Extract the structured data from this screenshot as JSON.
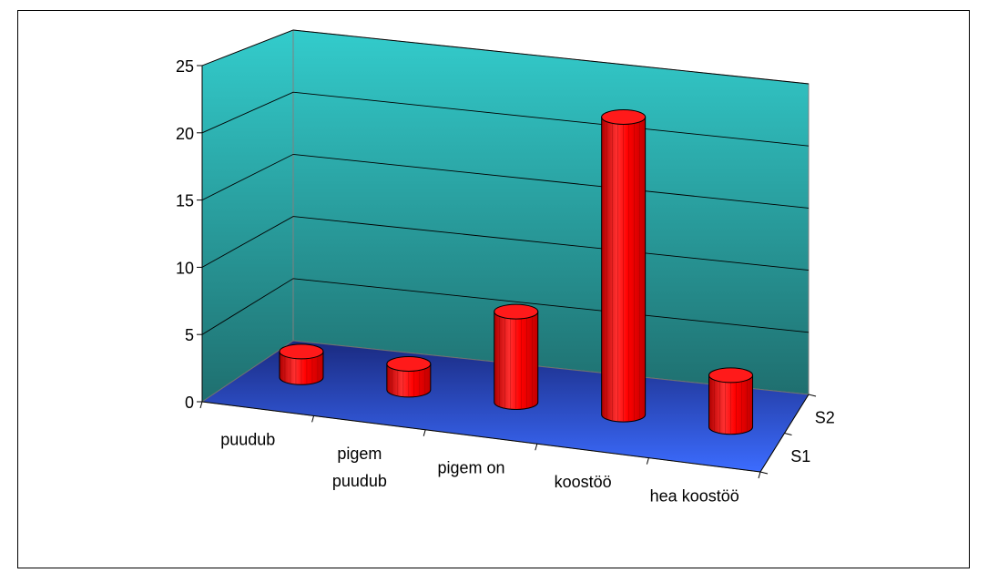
{
  "chart_data": {
    "type": "bar",
    "style": "3d-cylinder",
    "categories": [
      "puudub",
      "pigem puudub",
      "pigem on",
      "koostöö",
      "hea koostöö"
    ],
    "category_lines": [
      [
        "puudub"
      ],
      [
        "pigem",
        "puudub"
      ],
      [
        "pigem on"
      ],
      [
        "koostöö"
      ],
      [
        "hea koostöö"
      ]
    ],
    "series": [
      {
        "values": [
          2,
          2,
          7,
          23,
          4
        ],
        "color": "#ff0000"
      }
    ],
    "depth_labels": [
      "S2",
      "S1"
    ],
    "ylim": [
      0,
      25
    ],
    "yticks": [
      0,
      5,
      10,
      15,
      20,
      25
    ],
    "grid": true,
    "colors": {
      "back_wall_top": "#33cccc",
      "back_wall_bottom": "#1f6f6f",
      "floor_front": "#3c6cff",
      "floor_back": "#1a2a80",
      "bar": "#ff0000"
    }
  }
}
